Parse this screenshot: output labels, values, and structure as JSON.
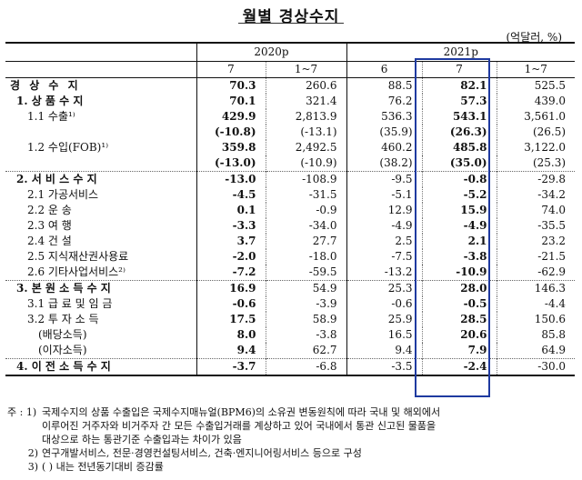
{
  "title": "월별 경상수지",
  "unit": "(억달러, %)",
  "header": {
    "year_2020": "2020p",
    "year_2021": "2021p",
    "cols": [
      "7",
      "1~7",
      "6",
      "7",
      "1~7"
    ]
  },
  "rows": [
    {
      "label": "경 상 수 지",
      "vals": [
        "70.3",
        "260.6",
        "88.5",
        "82.1",
        "525.5"
      ]
    },
    {
      "label": "1. 상 품 수 지",
      "vals": [
        "70.1",
        "321.4",
        "76.2",
        "57.3",
        "439.0"
      ]
    },
    {
      "label": "1.1 수출¹⁾",
      "vals": [
        "429.9",
        "2,813.9",
        "536.3",
        "543.1",
        "3,561.0"
      ]
    },
    {
      "label": "",
      "vals": [
        "(-10.8)",
        "(-13.1)",
        "(35.9)",
        "(26.3)",
        "(26.5)"
      ]
    },
    {
      "label": "1.2 수입(FOB)¹⁾",
      "vals": [
        "359.8",
        "2,492.5",
        "460.2",
        "485.8",
        "3,122.0"
      ]
    },
    {
      "label": "",
      "vals": [
        "(-13.0)",
        "(-10.9)",
        "(38.2)",
        "(35.0)",
        "(25.3)"
      ]
    },
    {
      "label": "2. 서 비 스 수 지",
      "vals": [
        "-13.0",
        "-108.9",
        "-9.5",
        "-0.8",
        "-29.8"
      ]
    },
    {
      "label": "2.1 가공서비스",
      "vals": [
        "-4.5",
        "-31.5",
        "-5.1",
        "-5.2",
        "-34.2"
      ]
    },
    {
      "label": "2.2 운 송",
      "vals": [
        "0.1",
        "-0.9",
        "12.9",
        "15.9",
        "74.0"
      ]
    },
    {
      "label": "2.3 여 행",
      "vals": [
        "-3.3",
        "-34.0",
        "-4.9",
        "-4.9",
        "-35.5"
      ]
    },
    {
      "label": "2.4 건 설",
      "vals": [
        "3.7",
        "27.7",
        "2.5",
        "2.1",
        "23.2"
      ]
    },
    {
      "label": "2.5 지식재산권사용료",
      "vals": [
        "-2.0",
        "-18.0",
        "-7.5",
        "-3.8",
        "-21.5"
      ]
    },
    {
      "label": "2.6 기타사업서비스²⁾",
      "vals": [
        "-7.2",
        "-59.5",
        "-13.2",
        "-10.9",
        "-62.9"
      ]
    },
    {
      "label": "3. 본 원 소 득 수 지",
      "vals": [
        "16.9",
        "54.9",
        "25.3",
        "28.0",
        "146.3"
      ]
    },
    {
      "label": "3.1 급 료 및 임 금",
      "vals": [
        "-0.6",
        "-3.9",
        "-0.6",
        "-0.5",
        "-4.4"
      ]
    },
    {
      "label": "3.2 투 자 소 득",
      "vals": [
        "17.5",
        "58.9",
        "25.9",
        "28.5",
        "150.6"
      ]
    },
    {
      "label": "(배당소득)",
      "vals": [
        "8.0",
        "-3.8",
        "16.5",
        "20.6",
        "85.8"
      ]
    },
    {
      "label": "(이자소득)",
      "vals": [
        "9.4",
        "62.7",
        "9.4",
        "7.9",
        "64.9"
      ]
    },
    {
      "label": "4. 이 전 소 득 수 지",
      "vals": [
        "-3.7",
        "-6.8",
        "-3.5",
        "-2.4",
        "-30.0"
      ]
    }
  ],
  "notes": [
    {
      "prefix": "주 : 1)",
      "text": "국제수지의 상품 수출입은 국제수지매뉴얼(BPM6)의 소유권 변동원칙에 따라 국내 및 해외에서"
    },
    {
      "prefix": "",
      "text": "이루어진 거주자와 비거주자 간 모든 수출입거래를 계상하고 있어 국내에서 통관 신고된 물품을"
    },
    {
      "prefix": "",
      "text": "대상으로 하는 통관기준 수출입과는 차이가 있음"
    },
    {
      "prefix": "2)",
      "text": "연구개발서비스, 전문·경영컨설팅서비스, 건축·엔지니어링서비스 등으로 구성"
    },
    {
      "prefix": "3)",
      "text": "( ) 내는 전년동기대비 증감률"
    }
  ]
}
